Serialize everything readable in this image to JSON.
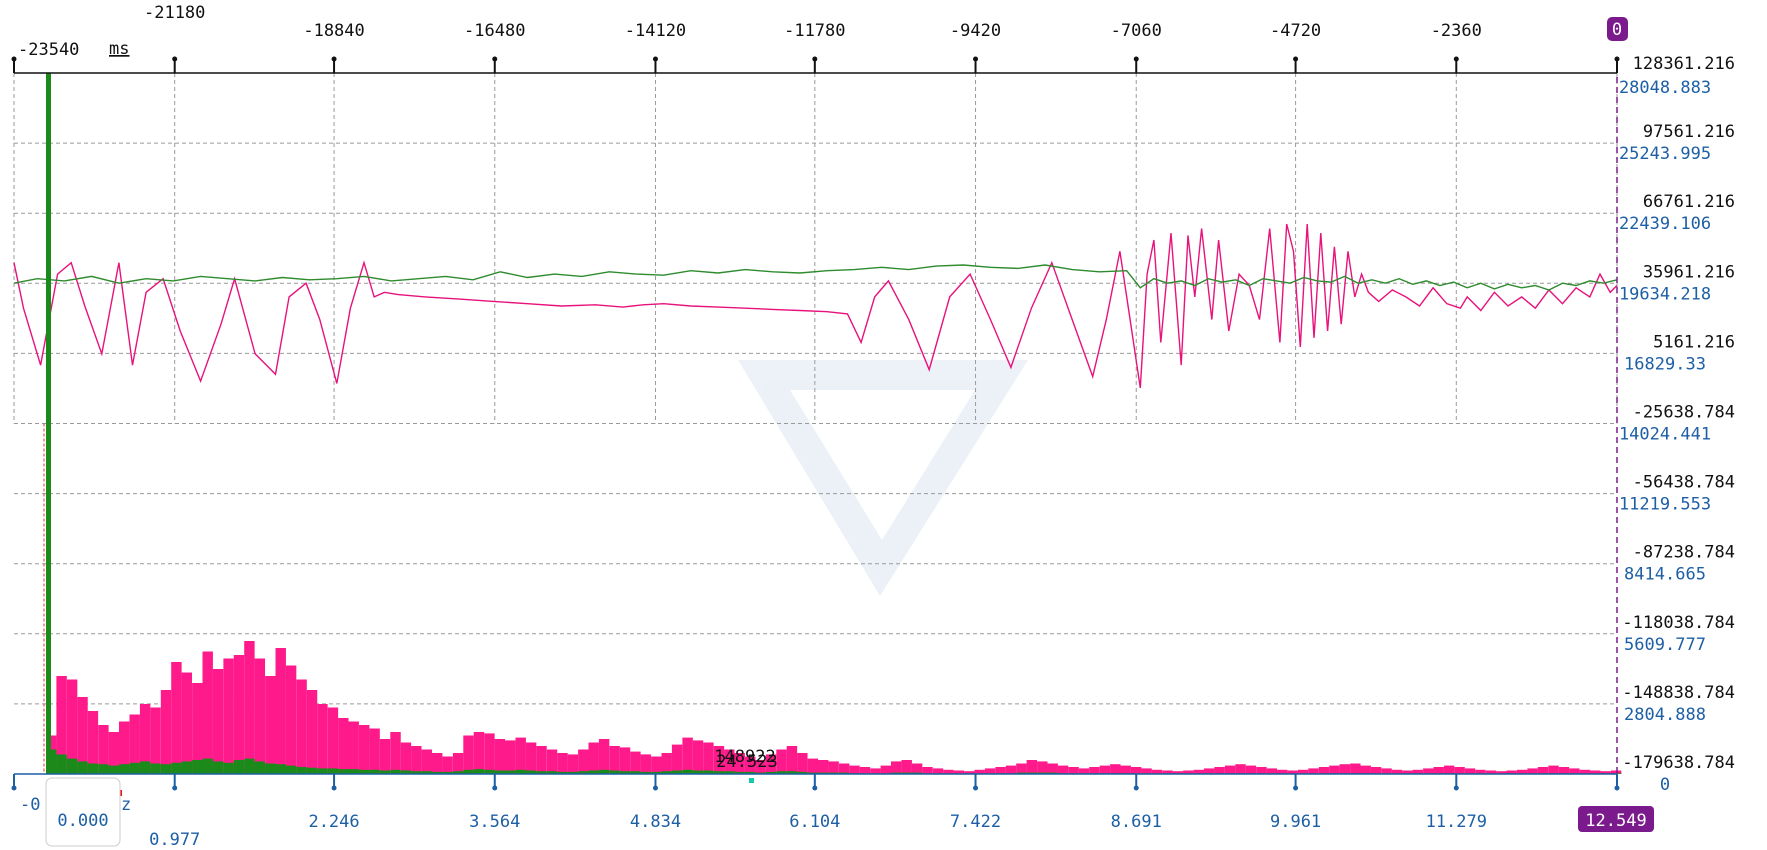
{
  "chart_data": {
    "type": "line",
    "time_axis": {
      "unit_label": "ms",
      "ticks": [
        "-23540",
        "-21180",
        "-18840",
        "-16480",
        "-14120",
        "-11780",
        "-9420",
        "-7060",
        "-4720",
        "-2360",
        "0"
      ],
      "range": [
        -23540,
        0
      ]
    },
    "time_value_axis": {
      "labels": [
        "128361.216",
        "97561.216",
        "66761.216",
        "35961.216",
        "5161.216",
        "-25638.784",
        "-56438.784",
        "-87238.784",
        "-118038.784",
        "-148838.784",
        "-179638.784"
      ],
      "range": [
        -179638.784,
        128361.216
      ]
    },
    "spectrum_value_axis": {
      "labels": [
        "28048.883",
        "25243.995",
        "22439.106",
        "19634.218",
        "16829.33",
        "14024.441",
        "11219.553",
        "8414.665",
        "5609.777",
        "2804.888",
        "0"
      ],
      "range": [
        0,
        28048.883
      ]
    },
    "freq_axis": {
      "unit_label": "z",
      "start_label": "-0",
      "selected_label": "0.000",
      "ticks": [
        "0.977",
        "2.246",
        "3.564",
        "4.834",
        "6.104",
        "7.422",
        "8.691",
        "9.961",
        "11.279",
        "12.549"
      ],
      "range": [
        0,
        12.549
      ]
    },
    "cursor_badge_top": "0",
    "cursor_badge_bottom": "12.549",
    "peak_marker_label": "148922",
    "peak_marker_sublabel": "24.523",
    "series": [
      {
        "color": "#e8127c",
        "t": [
          -23540,
          -23400,
          -23150,
          -22900,
          -22700,
          -22500,
          -22250,
          -22000,
          -21800,
          -21600,
          -21350,
          -21100,
          -20800,
          -20500,
          -20300,
          -20000,
          -19700,
          -19500,
          -19250,
          -19050,
          -18800,
          -18600,
          -18400,
          -18250,
          -18100,
          -17900,
          -17500,
          -17000,
          -16500,
          -16000,
          -15500,
          -15000,
          -14600,
          -14300,
          -14000,
          -13600,
          -13200,
          -12800,
          -12400,
          -12000,
          -11600,
          -11300,
          -11100,
          -10900,
          -10700,
          -10400,
          -10100,
          -9800,
          -9500,
          -9200,
          -8900,
          -8600,
          -8300,
          -8000,
          -7700,
          -7500,
          -7300,
          -7150,
          -7000,
          -6900,
          -6800,
          -6700,
          -6550,
          -6400,
          -6300,
          -6200,
          -6100,
          -5950,
          -5850,
          -5700,
          -5550,
          -5400,
          -5250,
          -5100,
          -4950,
          -4850,
          -4750,
          -4650,
          -4550,
          -4450,
          -4350,
          -4250,
          -4150,
          -4050,
          -3950,
          -3850,
          -3750,
          -3650,
          -3500,
          -3300,
          -3100,
          -2900,
          -2700,
          -2500,
          -2300,
          -2200,
          -2000,
          -1800,
          -1600,
          -1400,
          -1200,
          -1000,
          -800,
          -600,
          -400,
          -250,
          -100,
          0
        ],
        "v": [
          45000,
          25000,
          0,
          40000,
          45000,
          26000,
          5000,
          45000,
          0,
          32000,
          38000,
          15000,
          -7000,
          18000,
          38000,
          5000,
          -4000,
          30000,
          36000,
          20000,
          -8000,
          25000,
          45000,
          30000,
          32000,
          31000,
          30000,
          29000,
          28000,
          27000,
          26000,
          26500,
          25500,
          26500,
          27000,
          26000,
          25500,
          25000,
          24500,
          24000,
          23500,
          22500,
          10000,
          30000,
          37000,
          20000,
          -2000,
          30000,
          40000,
          20000,
          -1000,
          25000,
          45000,
          20000,
          -5000,
          20000,
          50000,
          20000,
          -10000,
          40000,
          55000,
          10000,
          58000,
          0,
          57000,
          30000,
          60000,
          20000,
          55000,
          15000,
          40000,
          35000,
          20000,
          60000,
          10000,
          62000,
          50000,
          8000,
          62000,
          12000,
          58000,
          15000,
          52000,
          18000,
          50000,
          30000,
          40000,
          32000,
          28000,
          33000,
          30000,
          26000,
          34000,
          27000,
          25000,
          30000,
          24000,
          32000,
          26000,
          30000,
          25000,
          33000,
          27000,
          34000,
          30000,
          40000,
          32000,
          35000
        ]
      },
      {
        "color": "#2e8b2e",
        "t": [
          -23540,
          -23200,
          -22800,
          -22400,
          -22000,
          -21600,
          -21200,
          -20800,
          -20400,
          -20000,
          -19600,
          -19200,
          -18800,
          -18400,
          -18000,
          -17600,
          -17200,
          -16800,
          -16400,
          -16000,
          -15600,
          -15200,
          -14800,
          -14400,
          -14000,
          -13600,
          -13200,
          -12800,
          -12400,
          -12000,
          -11600,
          -11200,
          -10800,
          -10400,
          -10000,
          -9600,
          -9200,
          -8800,
          -8400,
          -8000,
          -7600,
          -7200,
          -7000,
          -6800,
          -6600,
          -6400,
          -6200,
          -6000,
          -5800,
          -5600,
          -5400,
          -5200,
          -5000,
          -4800,
          -4600,
          -4400,
          -4200,
          -4000,
          -3800,
          -3600,
          -3400,
          -3200,
          -3000,
          -2800,
          -2600,
          -2400,
          -2200,
          -2000,
          -1800,
          -1600,
          -1400,
          -1200,
          -1000,
          -800,
          -600,
          -400,
          -200,
          0
        ],
        "v": [
          36000,
          38000,
          37000,
          39000,
          36000,
          38000,
          37000,
          39000,
          38000,
          37000,
          38500,
          37500,
          38000,
          39000,
          37000,
          38000,
          39000,
          37500,
          41000,
          38500,
          40000,
          39000,
          41000,
          40000,
          39500,
          41500,
          40500,
          42000,
          41000,
          40500,
          41500,
          42000,
          43000,
          42000,
          43500,
          44000,
          43000,
          42500,
          44000,
          42000,
          41000,
          41500,
          34000,
          38000,
          36000,
          37000,
          35000,
          38000,
          36500,
          37500,
          35000,
          38000,
          37000,
          36000,
          38500,
          37000,
          36500,
          39000,
          36000,
          37500,
          36000,
          38000,
          35500,
          37000,
          35000,
          36500,
          34000,
          36000,
          33500,
          35500,
          34000,
          35000,
          33000,
          36000,
          35000,
          37000,
          36000,
          37500
        ]
      }
    ],
    "spectrum": {
      "bins_per_hz": 12,
      "pink": [
        55,
        140,
        135,
        110,
        90,
        70,
        60,
        75,
        85,
        100,
        95,
        120,
        160,
        145,
        130,
        175,
        150,
        165,
        170,
        190,
        165,
        140,
        180,
        155,
        135,
        120,
        100,
        95,
        80,
        75,
        70,
        65,
        50,
        60,
        45,
        40,
        35,
        30,
        25,
        30,
        55,
        60,
        58,
        50,
        48,
        52,
        45,
        40,
        35,
        30,
        28,
        35,
        45,
        50,
        40,
        38,
        32,
        28,
        25,
        30,
        42,
        52,
        48,
        45,
        40,
        35,
        30,
        25,
        20,
        28,
        35,
        40,
        30,
        22,
        20,
        18,
        15,
        12,
        10,
        8,
        12,
        18,
        20,
        15,
        10,
        8,
        6,
        5,
        4,
        6,
        8,
        10,
        12,
        15,
        20,
        18,
        15,
        12,
        10,
        8,
        10,
        12,
        14,
        12,
        10,
        8,
        6,
        5,
        4,
        5,
        6,
        8,
        10,
        12,
        14,
        12,
        10,
        8,
        6,
        5,
        6,
        8,
        10,
        12,
        14,
        15,
        12,
        10,
        8,
        6,
        5,
        6,
        8,
        10,
        12,
        10,
        8,
        6,
        5,
        4,
        5,
        6,
        8,
        10,
        12,
        10,
        8,
        6,
        5,
        4,
        5,
        6,
        7,
        8,
        9,
        10,
        8,
        6,
        5,
        4,
        3,
        4,
        5,
        6,
        8,
        10,
        12,
        14,
        12,
        10,
        8,
        6,
        5,
        4,
        5,
        6,
        8,
        10,
        12,
        10,
        8,
        6,
        5,
        4,
        5,
        8,
        12,
        16,
        14,
        10,
        8,
        6,
        5,
        4,
        5,
        6,
        8,
        10,
        8,
        6,
        5,
        4,
        3,
        4,
        5,
        6,
        5,
        4,
        3,
        2,
        3,
        4,
        5,
        6,
        5,
        4,
        3,
        2,
        3,
        4,
        3,
        2
      ],
      "green": [
        35,
        28,
        22,
        18,
        15,
        14,
        12,
        14,
        16,
        18,
        15,
        14,
        16,
        18,
        20,
        22,
        18,
        16,
        20,
        22,
        18,
        15,
        14,
        12,
        10,
        9,
        8,
        8,
        7,
        7,
        6,
        6,
        5,
        6,
        5,
        4,
        4,
        3,
        3,
        4,
        6,
        7,
        6,
        5,
        5,
        6,
        5,
        4,
        4,
        3,
        3,
        4,
        5,
        6,
        5,
        4,
        4,
        3,
        3,
        4,
        5,
        6,
        5,
        5,
        4,
        4,
        3,
        3,
        2,
        3,
        4,
        4,
        3,
        2,
        2,
        2,
        2,
        1,
        1,
        1,
        1,
        2,
        2,
        2,
        1,
        1,
        1,
        1,
        1,
        1,
        1,
        1,
        1,
        2,
        2,
        2,
        2,
        1,
        1,
        1,
        1,
        1,
        1,
        1,
        1,
        1,
        1,
        1,
        1,
        1,
        1,
        1,
        1,
        1,
        1,
        1,
        1,
        1,
        1,
        1,
        1,
        1,
        1,
        1,
        1,
        1,
        1,
        1,
        1,
        1,
        1,
        1,
        1,
        1,
        1,
        1,
        1,
        1,
        1,
        1,
        1,
        1,
        1,
        1,
        1,
        1,
        1,
        1,
        1,
        1,
        1,
        1,
        1,
        1,
        1,
        1,
        1,
        1,
        1,
        1,
        1,
        1,
        1,
        1,
        1,
        1,
        1,
        1,
        1,
        1,
        1,
        1,
        1,
        1,
        1,
        1,
        1,
        1,
        1,
        1,
        1,
        1,
        1,
        1,
        1,
        1,
        1,
        1,
        1,
        1,
        1,
        1,
        1,
        1,
        1,
        1,
        1,
        1,
        1,
        1,
        1,
        1,
        1,
        1,
        1,
        1,
        1,
        1,
        1,
        1,
        1,
        1,
        1,
        1,
        1,
        1,
        1,
        1
      ],
      "dc_value": 28048.883
    },
    "colors": {
      "accent": "#7b1a8c",
      "pink": "#ff1a8c",
      "green": "#1b8a1b",
      "blue_text": "#1d5fa5",
      "red_bar": "#ee1111"
    },
    "grid": true
  }
}
